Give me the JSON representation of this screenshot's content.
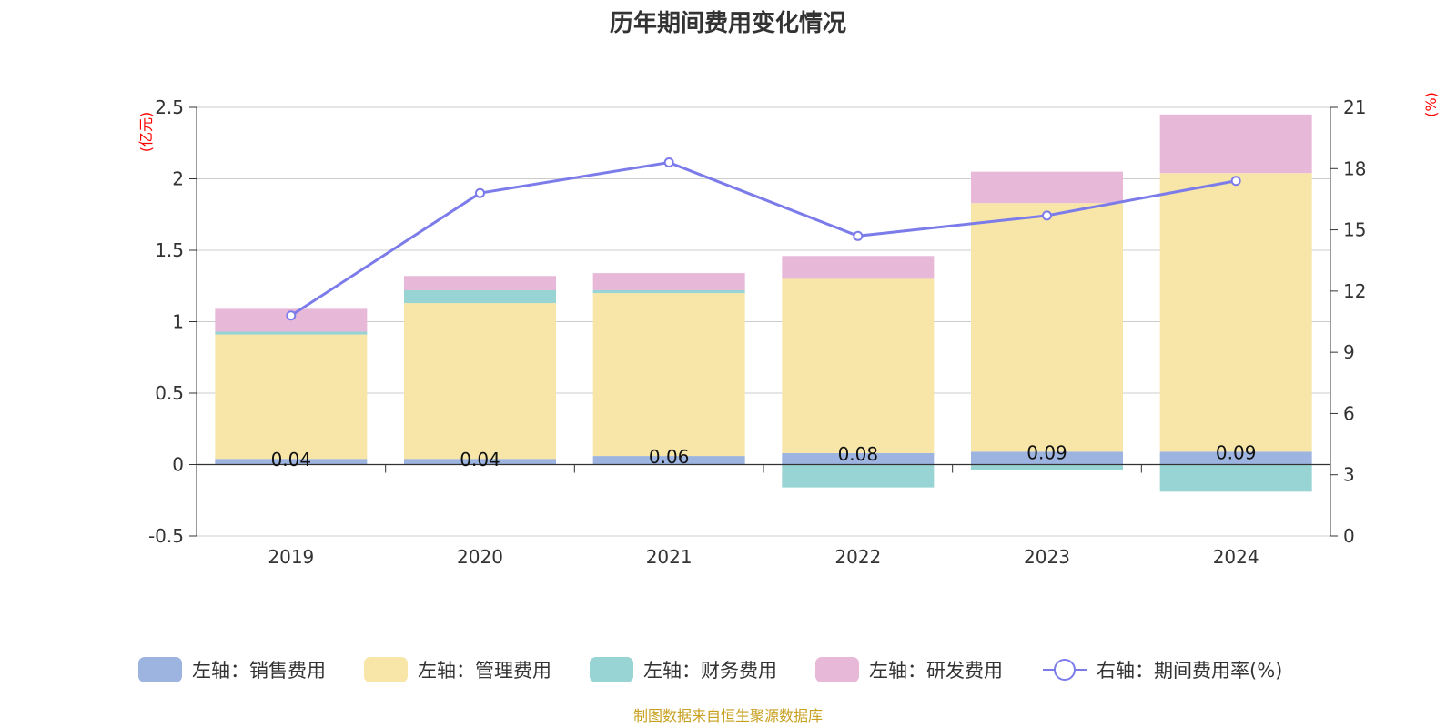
{
  "chart_data": {
    "type": "bar",
    "title": "历年期间费用变化情况",
    "categories": [
      "2019",
      "2020",
      "2021",
      "2022",
      "2023",
      "2024"
    ],
    "left_axis": {
      "unit_label": "(亿元)",
      "range": [
        -0.5,
        2.5
      ],
      "ticks": [
        "-0.5",
        "0",
        "0.5",
        "1",
        "1.5",
        "2",
        "2.5"
      ]
    },
    "right_axis": {
      "unit_label": "(%)",
      "range": [
        0,
        21
      ],
      "ticks": [
        "0",
        "3",
        "6",
        "9",
        "12",
        "15",
        "18",
        "21"
      ]
    },
    "series": [
      {
        "name": "左轴：销售费用",
        "type": "bar",
        "axis": "left",
        "color": "#9db4e0",
        "values": [
          0.04,
          0.04,
          0.06,
          0.08,
          0.09,
          0.09
        ],
        "labels": [
          "0.04",
          "0.04",
          "0.06",
          "0.08",
          "0.09",
          "0.09"
        ]
      },
      {
        "name": "左轴：管理费用",
        "type": "bar",
        "axis": "left",
        "color": "#f8e6a8",
        "values": [
          0.87,
          1.09,
          1.14,
          1.22,
          1.74,
          1.95
        ]
      },
      {
        "name": "左轴：财务费用",
        "type": "bar",
        "axis": "left",
        "color": "#98d4d4",
        "values": [
          0.02,
          0.09,
          0.02,
          -0.16,
          -0.04,
          -0.19
        ]
      },
      {
        "name": "左轴：研发费用",
        "type": "bar",
        "axis": "left",
        "color": "#e8b8d8",
        "values": [
          0.16,
          0.1,
          0.12,
          0.16,
          0.22,
          0.41
        ]
      },
      {
        "name": "右轴：期间费用率(%)",
        "type": "line",
        "axis": "right",
        "color": "#7b7bea",
        "values": [
          10.8,
          16.8,
          18.3,
          14.7,
          15.7,
          17.4
        ]
      }
    ],
    "grid": true,
    "legend_position": "bottom"
  },
  "source_note": "制图数据来自恒生聚源数据库"
}
